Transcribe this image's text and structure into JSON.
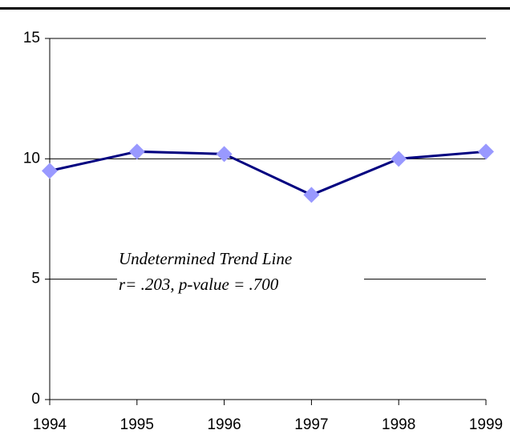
{
  "chart_data": {
    "type": "line",
    "annotations": [
      "Undetermined Trend Line",
      "r= .203, p-value = .700"
    ],
    "x": [
      1994,
      1995,
      1996,
      1997,
      1998,
      1999
    ],
    "series": [
      {
        "name": null,
        "color": "#000080",
        "marker_color": "#9999ff",
        "values": [
          9.5,
          10.3,
          10.2,
          8.5,
          10.0,
          10.3
        ]
      }
    ],
    "xlim": [
      1994,
      1999
    ],
    "xticks": [
      1994,
      1995,
      1996,
      1997,
      1998,
      1999
    ],
    "ylim": [
      0,
      15
    ],
    "yticks": [
      0,
      5,
      10,
      15
    ],
    "grid": true
  }
}
